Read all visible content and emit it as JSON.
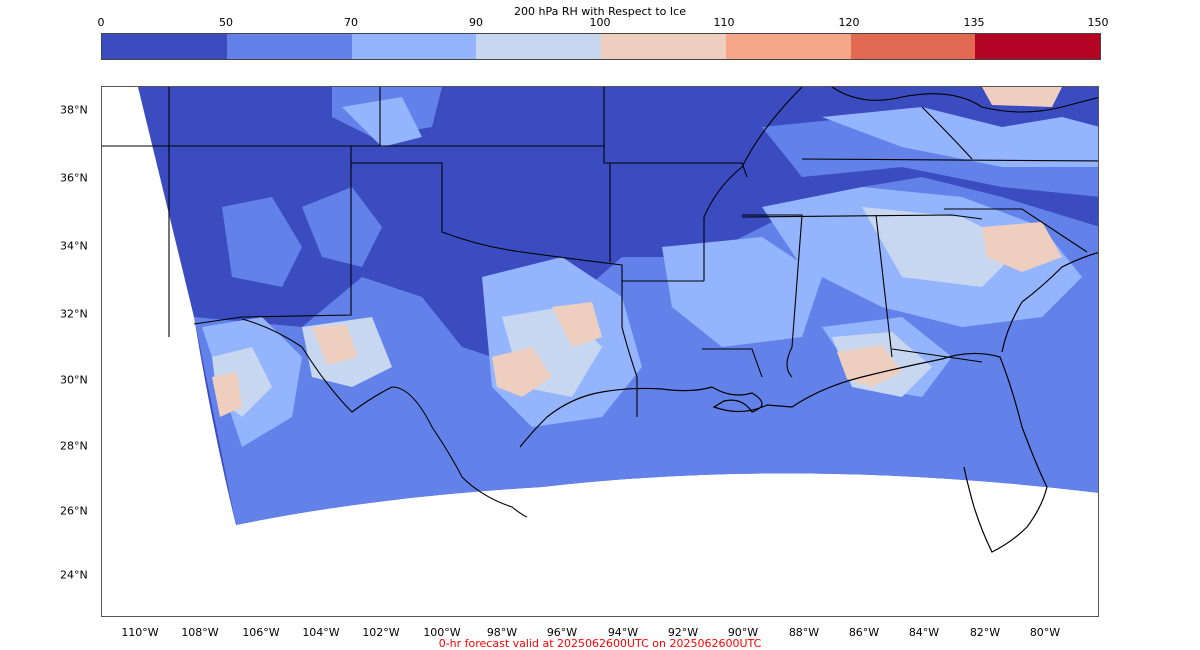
{
  "title": "200 hPa RH with Respect to Ice",
  "colorbar": {
    "ticks": [
      "0",
      "50",
      "70",
      "90",
      "100",
      "110",
      "120",
      "135",
      "150"
    ],
    "colors": [
      "#3b4cc0",
      "#6282ea",
      "#94b5fe",
      "#c8d7f0",
      "#eecfbf",
      "#f7a789",
      "#e26a52",
      "#b40426"
    ]
  },
  "map": {
    "lat_labels": [
      "38°N",
      "36°N",
      "34°N",
      "32°N",
      "30°N",
      "28°N",
      "26°N",
      "24°N"
    ],
    "lon_labels": [
      "110°W",
      "108°W",
      "106°W",
      "104°W",
      "102°W",
      "100°W",
      "98°W",
      "96°W",
      "94°W",
      "92°W",
      "90°W",
      "88°W",
      "86°W",
      "84°W",
      "82°W",
      "80°W"
    ]
  },
  "footer": {
    "text": "0-hr forecast valid at 2025062600UTC on 2025062600UTC",
    "color": "#ff0000"
  }
}
